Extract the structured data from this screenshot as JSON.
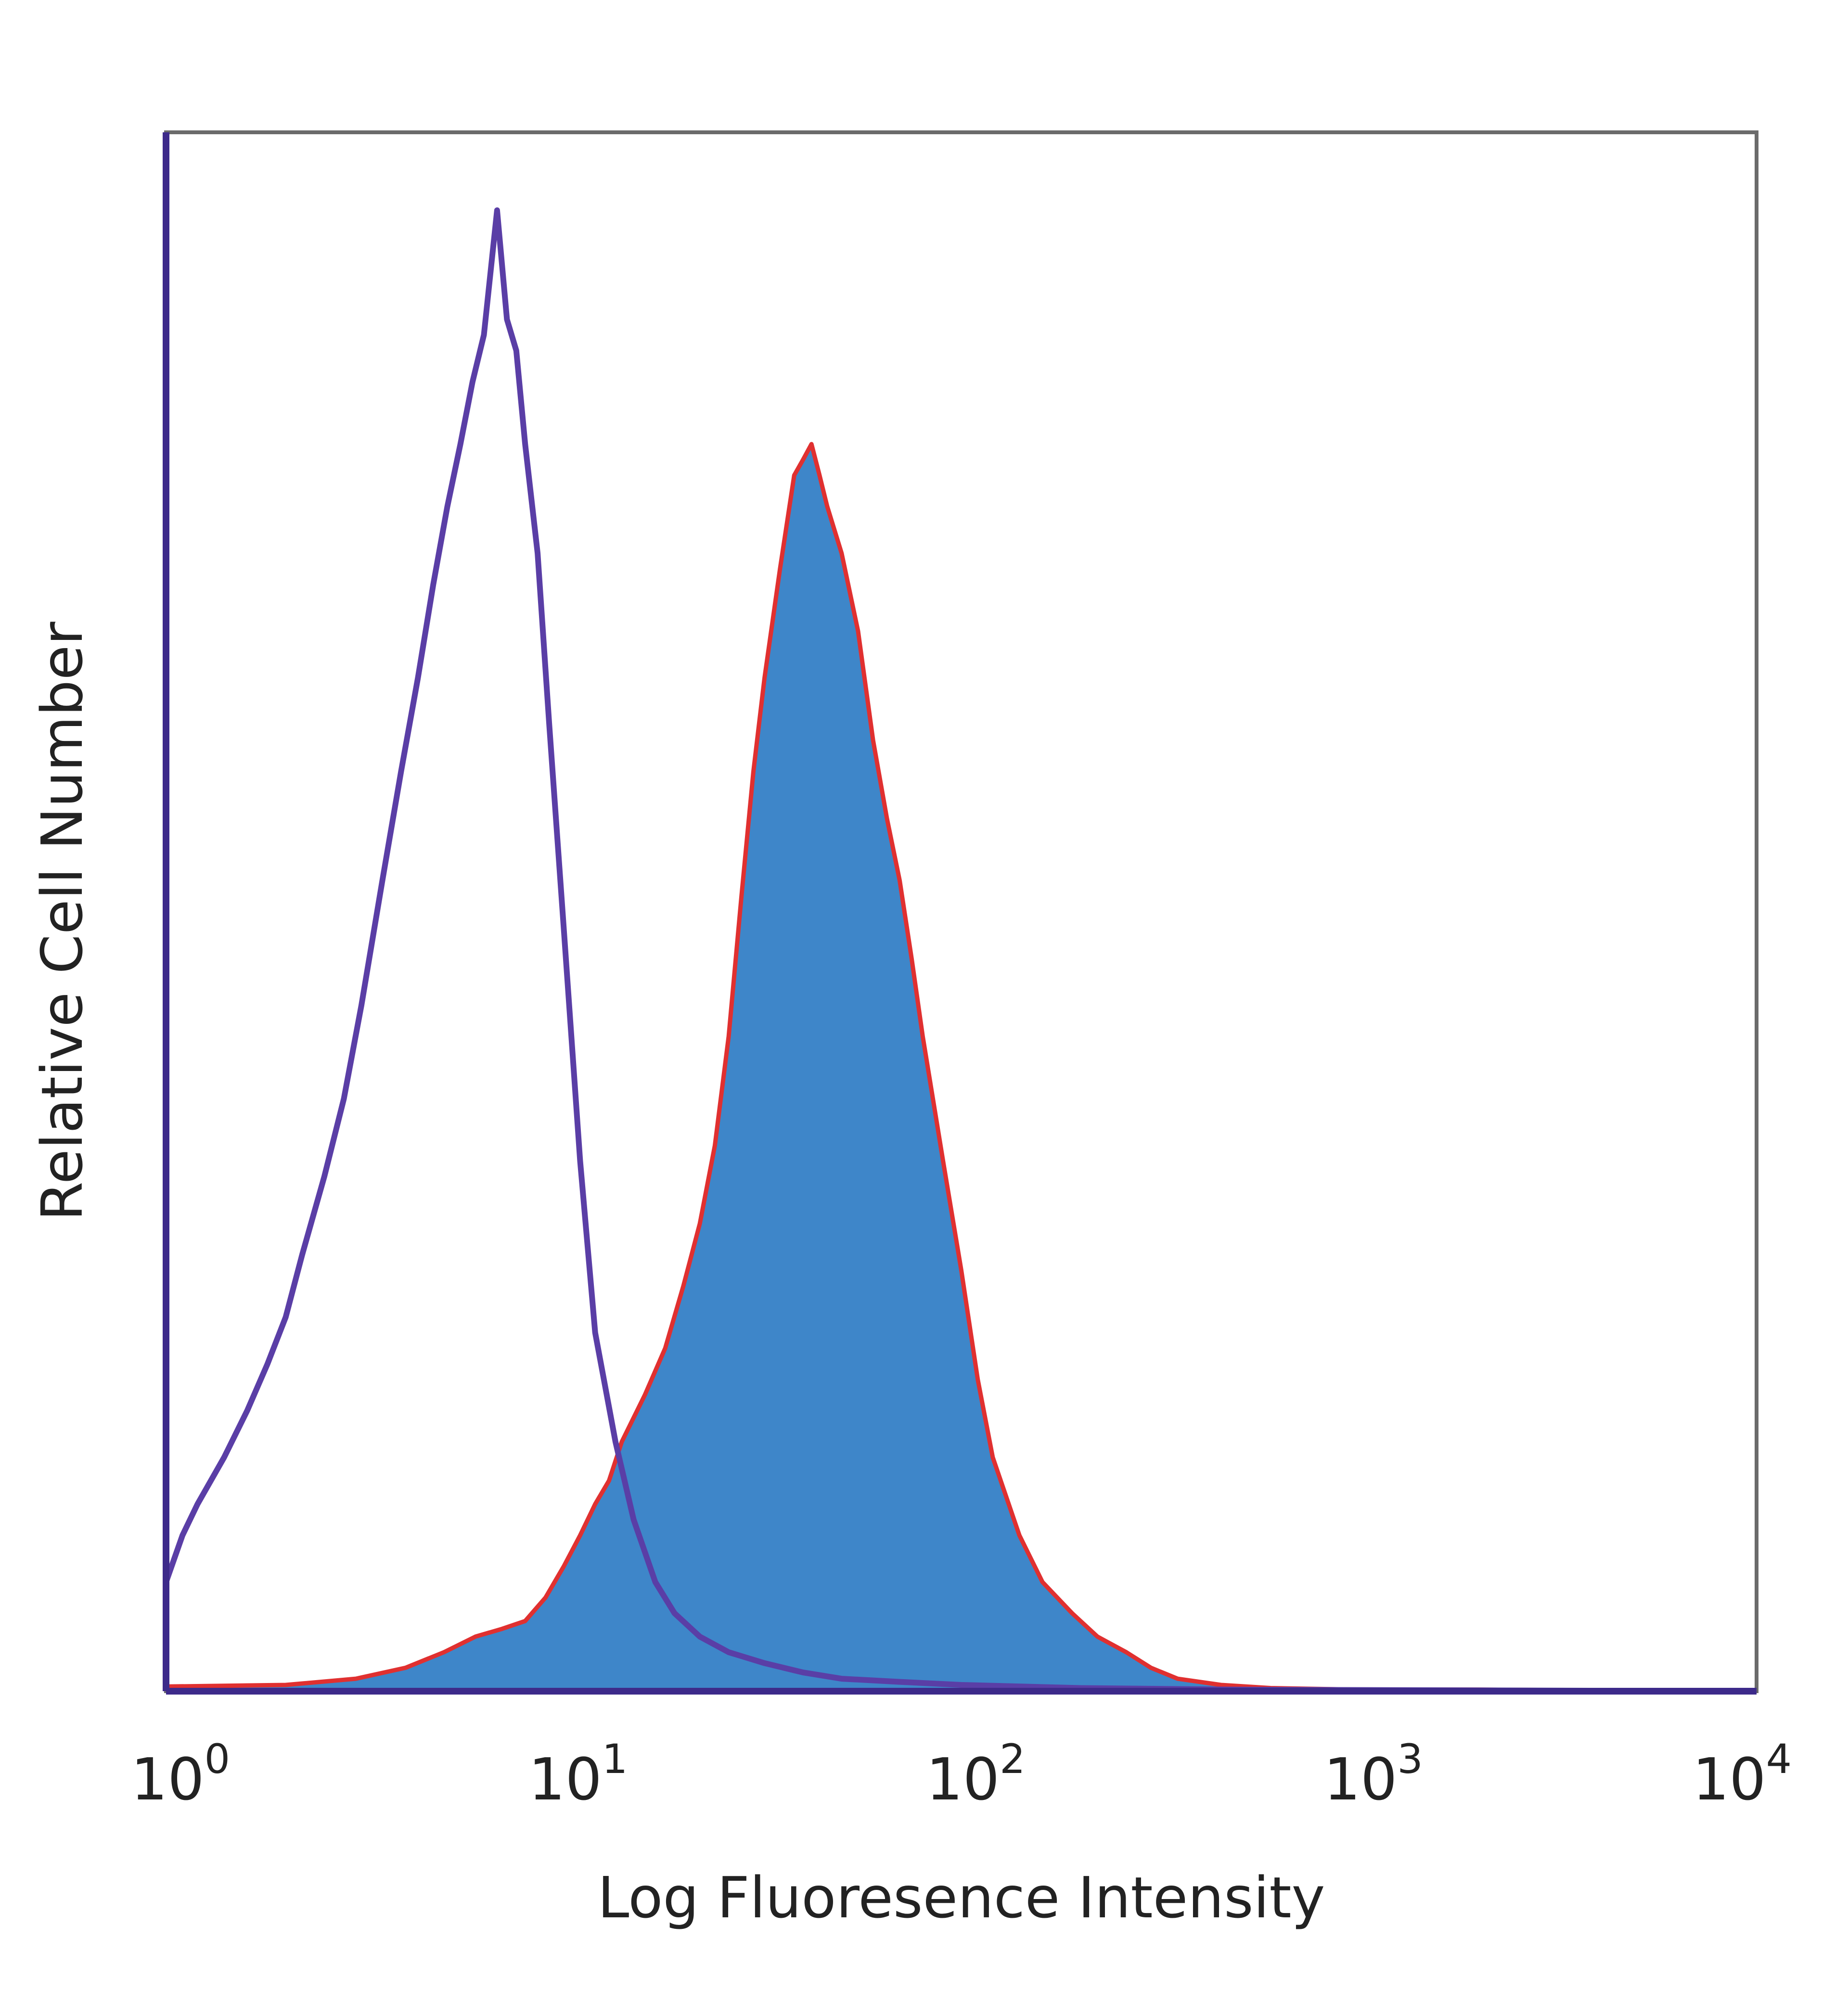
{
  "chart_data": {
    "type": "area",
    "title": "",
    "xlabel": "Log Fluoresence Intensity",
    "ylabel": "Relative Cell Number",
    "x_scale": "log",
    "xlim": [
      1,
      10000
    ],
    "ylim": [
      0,
      1.0
    ],
    "grid": false,
    "legend": "none",
    "x_ticks": [
      {
        "base": "10",
        "exp": "0",
        "value": 1
      },
      {
        "base": "10",
        "exp": "1",
        "value": 10
      },
      {
        "base": "10",
        "exp": "2",
        "value": 100
      },
      {
        "base": "10",
        "exp": "3",
        "value": 1000
      },
      {
        "base": "10",
        "exp": "4",
        "value": 10000
      }
    ],
    "series": [
      {
        "style": "outline",
        "color": "#5a3ea6",
        "points": [
          [
            1.0,
            0.07
          ],
          [
            1.1,
            0.1
          ],
          [
            1.2,
            0.12
          ],
          [
            1.4,
            0.15
          ],
          [
            1.6,
            0.18
          ],
          [
            1.8,
            0.21
          ],
          [
            2.0,
            0.24
          ],
          [
            2.2,
            0.28
          ],
          [
            2.5,
            0.33
          ],
          [
            2.8,
            0.38
          ],
          [
            3.1,
            0.44
          ],
          [
            3.5,
            0.52
          ],
          [
            3.9,
            0.59
          ],
          [
            4.3,
            0.65
          ],
          [
            4.7,
            0.71
          ],
          [
            5.1,
            0.76
          ],
          [
            5.5,
            0.8
          ],
          [
            5.9,
            0.84
          ],
          [
            6.3,
            0.87
          ],
          [
            6.8,
            0.95
          ],
          [
            7.2,
            0.88
          ],
          [
            7.6,
            0.86
          ],
          [
            8.0,
            0.8
          ],
          [
            8.6,
            0.73
          ],
          [
            9.2,
            0.62
          ],
          [
            10.0,
            0.49
          ],
          [
            11.0,
            0.34
          ],
          [
            12.0,
            0.23
          ],
          [
            13.5,
            0.16
          ],
          [
            15.0,
            0.11
          ],
          [
            17.0,
            0.07
          ],
          [
            19.0,
            0.05
          ],
          [
            22.0,
            0.035
          ],
          [
            26.0,
            0.025
          ],
          [
            32.0,
            0.018
          ],
          [
            40.0,
            0.012
          ],
          [
            50.0,
            0.008
          ],
          [
            70.0,
            0.006
          ],
          [
            100.0,
            0.004
          ],
          [
            200.0,
            0.002
          ],
          [
            500.0,
            0.001
          ],
          [
            10000.0,
            0.0
          ]
        ]
      },
      {
        "style": "filled",
        "color": "#3e86c9",
        "stroke": "#e03030",
        "points": [
          [
            1.0,
            0.003
          ],
          [
            2.0,
            0.004
          ],
          [
            3.0,
            0.008
          ],
          [
            4.0,
            0.015
          ],
          [
            5.0,
            0.025
          ],
          [
            6.0,
            0.035
          ],
          [
            7.0,
            0.04
          ],
          [
            8.0,
            0.045
          ],
          [
            9.0,
            0.06
          ],
          [
            10.0,
            0.08
          ],
          [
            11.0,
            0.1
          ],
          [
            12.0,
            0.12
          ],
          [
            13.0,
            0.135
          ],
          [
            14.0,
            0.16
          ],
          [
            16.0,
            0.19
          ],
          [
            18.0,
            0.22
          ],
          [
            20.0,
            0.26
          ],
          [
            22.0,
            0.3
          ],
          [
            24.0,
            0.35
          ],
          [
            26.0,
            0.42
          ],
          [
            28.0,
            0.51
          ],
          [
            30.0,
            0.59
          ],
          [
            32.0,
            0.65
          ],
          [
            35.0,
            0.72
          ],
          [
            38.0,
            0.78
          ],
          [
            40.0,
            0.79
          ],
          [
            42.0,
            0.8
          ],
          [
            44.0,
            0.78
          ],
          [
            46.0,
            0.76
          ],
          [
            50.0,
            0.73
          ],
          [
            55.0,
            0.68
          ],
          [
            60.0,
            0.61
          ],
          [
            65.0,
            0.56
          ],
          [
            70.0,
            0.52
          ],
          [
            75.0,
            0.47
          ],
          [
            80.0,
            0.42
          ],
          [
            90.0,
            0.34
          ],
          [
            100.0,
            0.27
          ],
          [
            110.0,
            0.2
          ],
          [
            120.0,
            0.15
          ],
          [
            140.0,
            0.1
          ],
          [
            160.0,
            0.07
          ],
          [
            190.0,
            0.05
          ],
          [
            220.0,
            0.035
          ],
          [
            260.0,
            0.025
          ],
          [
            300.0,
            0.015
          ],
          [
            350.0,
            0.008
          ],
          [
            450.0,
            0.004
          ],
          [
            600.0,
            0.002
          ],
          [
            1000.0,
            0.001
          ],
          [
            2000.0,
            0.001
          ],
          [
            10000.0,
            0.0
          ]
        ]
      }
    ]
  }
}
